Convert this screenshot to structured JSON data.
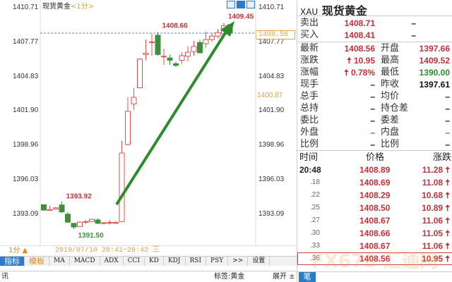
{
  "chart_header": {
    "title": "现货黄金",
    "period": "<1分>"
  },
  "chart_tools": [
    {
      "icon": "crosshair-icon"
    },
    {
      "icon": "chart-type-icon"
    },
    {
      "icon": "expand-right-icon"
    }
  ],
  "left_axis": [
    "1410.71",
    "1407.77",
    "1404.83",
    "1401.90",
    "1398.96",
    "1396.03",
    "1393.09"
  ],
  "right_axis": [
    "1410.71",
    "1407.77",
    "1404.83",
    "1401.90",
    "1398.96",
    "1396.03",
    "1393.09"
  ],
  "cursor_price": "1400.87",
  "last_price_tag": "1408.56",
  "chart_data": {
    "type": "candlestick",
    "ylim": [
      1390.7,
      1411.4
    ],
    "y_ticks": [
      1410.71,
      1407.77,
      1404.83,
      1401.9,
      1398.96,
      1396.03,
      1393.09
    ],
    "gridlines": false,
    "colors": {
      "up": "#d9534f",
      "down": "#3f8f3f"
    },
    "candles": [
      [
        1393.62,
        1393.65,
        1393.1,
        1393.15
      ],
      [
        1393.12,
        1393.5,
        1393.1,
        1393.2
      ],
      [
        1393.25,
        1393.4,
        1393.2,
        1393.35
      ],
      [
        1393.6,
        1393.92,
        1392.9,
        1393.0
      ],
      [
        1392.8,
        1393.0,
        1392.05,
        1392.1
      ],
      [
        1392.0,
        1392.0,
        1391.5,
        1391.68
      ],
      [
        1391.72,
        1392.2,
        1391.7,
        1392.1
      ],
      [
        1392.1,
        1392.3,
        1391.95,
        1392.15
      ],
      [
        1392.15,
        1392.4,
        1392.1,
        1392.35
      ],
      [
        1392.3,
        1392.45,
        1391.95,
        1392.0
      ],
      [
        1392.0,
        1392.1,
        1391.9,
        1392.05
      ],
      [
        1392.05,
        1392.3,
        1391.9,
        1392.08
      ],
      [
        1392.05,
        1392.2,
        1391.95,
        1392.07
      ],
      [
        1392.15,
        1399.2,
        1392.1,
        1398.12
      ],
      [
        1398.86,
        1403.0,
        1398.8,
        1401.75
      ],
      [
        1402.4,
        1403.8,
        1401.9,
        1402.97
      ],
      [
        1403.8,
        1406.4,
        1403.8,
        1406.3
      ],
      [
        1406.7,
        1408.0,
        1406.2,
        1406.8
      ],
      [
        1407.75,
        1408.5,
        1406.6,
        1407.8
      ],
      [
        1408.38,
        1408.66,
        1406.6,
        1406.7
      ],
      [
        1406.5,
        1407.2,
        1405.8,
        1406.55
      ],
      [
        1406.4,
        1406.7,
        1405.8,
        1406.2
      ],
      [
        1405.9,
        1406.1,
        1405.6,
        1405.75
      ],
      [
        1406.2,
        1406.9,
        1405.9,
        1406.6
      ],
      [
        1406.55,
        1407.4,
        1406.1,
        1406.9
      ],
      [
        1406.95,
        1407.9,
        1406.6,
        1407.4
      ],
      [
        1407.75,
        1408.0,
        1406.8,
        1406.85
      ],
      [
        1407.65,
        1408.7,
        1407.3,
        1408.0
      ],
      [
        1408.0,
        1408.6,
        1407.8,
        1408.3
      ],
      [
        1408.3,
        1408.9,
        1408.1,
        1408.6
      ],
      [
        1408.5,
        1409.45,
        1408.4,
        1409.2
      ],
      [
        1409.3,
        1409.3,
        1408.3,
        1408.56
      ]
    ],
    "annotations": [
      {
        "text": "1409.45",
        "type": "high"
      },
      {
        "text": "1408.66",
        "type": "local-high"
      },
      {
        "text": "1393.92",
        "type": "local-high"
      },
      {
        "text": "1391.50",
        "type": "low"
      }
    ],
    "reference_line": 1408.56
  },
  "status_bar": {
    "period": "1分 ▲",
    "time_range": "2019/07/10 20:41~20:42 三"
  },
  "indicator_tabs": [
    "指标",
    "模板",
    "MA",
    "MACD",
    "ADX",
    "CCI",
    "KD",
    "KDJ",
    "RSI",
    "PSY",
    ">>",
    "设置"
  ],
  "bottom_bar": {
    "left": "讯",
    "tag": "标签:黄金",
    "expand": "展开 ±"
  },
  "quote": {
    "code": "XAU",
    "name": "现货黄金",
    "sell": {
      "label": "卖出",
      "value": "1408.71",
      "extra": "–"
    },
    "buy": {
      "label": "买入",
      "value": "1408.41",
      "extra": "–"
    },
    "rows": [
      {
        "l1": "最新",
        "v1": "1408.56",
        "c1": "red",
        "l2": "开盘",
        "v2": "1397.66",
        "c2": "red"
      },
      {
        "l1": "涨跌",
        "v1": "🠅 10.95",
        "c1": "red",
        "l2": "最高",
        "v2": "1409.52",
        "c2": "red"
      },
      {
        "l1": "涨幅",
        "v1": "🠅 0.78%",
        "c1": "red",
        "l2": "最低",
        "v2": "1390.00",
        "c2": "grn"
      },
      {
        "l1": "现手",
        "v1": "–",
        "c1": "blk",
        "l2": "昨收",
        "v2": "1397.61",
        "c2": "blk"
      },
      {
        "l1": "总手",
        "v1": "–",
        "c1": "blk",
        "l2": "均价",
        "v2": "–",
        "c2": "blk"
      },
      {
        "l1": "总持",
        "v1": "–",
        "c1": "blk",
        "l2": "持仓差",
        "v2": "–",
        "c2": "blk"
      },
      {
        "l1": "委比",
        "v1": "–",
        "c1": "blk",
        "l2": "委差",
        "v2": "–",
        "c2": "blk"
      },
      {
        "l1": "外盘",
        "v1": "–",
        "c1": "red",
        "l2": "内盘",
        "v2": "–",
        "c2": "grn"
      },
      {
        "l1": "比例",
        "v1": "–",
        "c1": "blk",
        "l2": "比例",
        "v2": "–",
        "c2": "blk"
      }
    ]
  },
  "ticks": {
    "headers": [
      "时间",
      "价格",
      "涨跌"
    ],
    "rows": [
      {
        "time": "20:48",
        "price": "1408.89",
        "chg": "11.28 🠅"
      },
      {
        "time": ".18",
        "price": "1408.69",
        "chg": "11.08 🠅"
      },
      {
        "time": ".22",
        "price": "1408.29",
        "chg": "10.68 🠅"
      },
      {
        "time": ".25",
        "price": "1408.50",
        "chg": "10.89 🠅"
      },
      {
        "time": ".27",
        "price": "1408.67",
        "chg": "11.06 🠅"
      },
      {
        "time": ".30",
        "price": "1408.66",
        "chg": "11.05 🠅"
      },
      {
        "time": ".33",
        "price": "1408.67",
        "chg": "11.06 🠅"
      },
      {
        "time": ".36",
        "price": "1408.56",
        "chg": "10.95 🠅"
      }
    ],
    "footer_tab": "笔"
  },
  "watermark": "FX678 汇通网"
}
